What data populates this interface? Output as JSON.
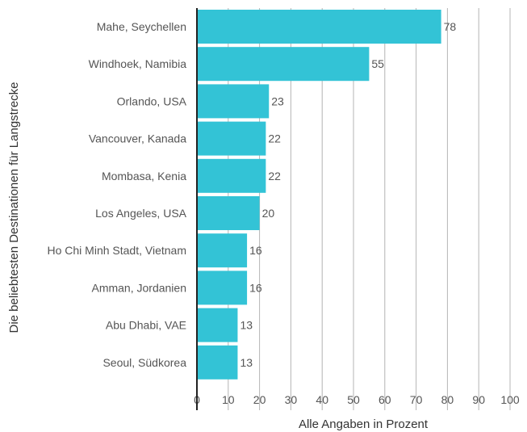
{
  "chart_data": {
    "type": "bar",
    "orientation": "horizontal",
    "categories": [
      "Mahe, Seychellen",
      "Windhoek, Namibia",
      "Orlando, USA",
      "Vancouver, Kanada",
      "Mombasa, Kenia",
      "Los Angeles, USA",
      "Ho Chi Minh Stadt, Vietnam",
      "Amman, Jordanien",
      "Abu Dhabi, VAE",
      "Seoul, Südkorea"
    ],
    "values": [
      78,
      55,
      23,
      22,
      22,
      20,
      16,
      16,
      13,
      13
    ],
    "xlabel": "Alle Angaben in Prozent",
    "ylabel": "Die beliebtesten Destinationen für Langstrecke",
    "xlim": [
      0,
      100
    ],
    "xticks": [
      0,
      10,
      20,
      30,
      40,
      50,
      60,
      70,
      80,
      90,
      100
    ],
    "grid": "vertical",
    "bar_color": "#33c3d6",
    "gridline_color": "#b4b4b4",
    "text_color": "#555555"
  }
}
